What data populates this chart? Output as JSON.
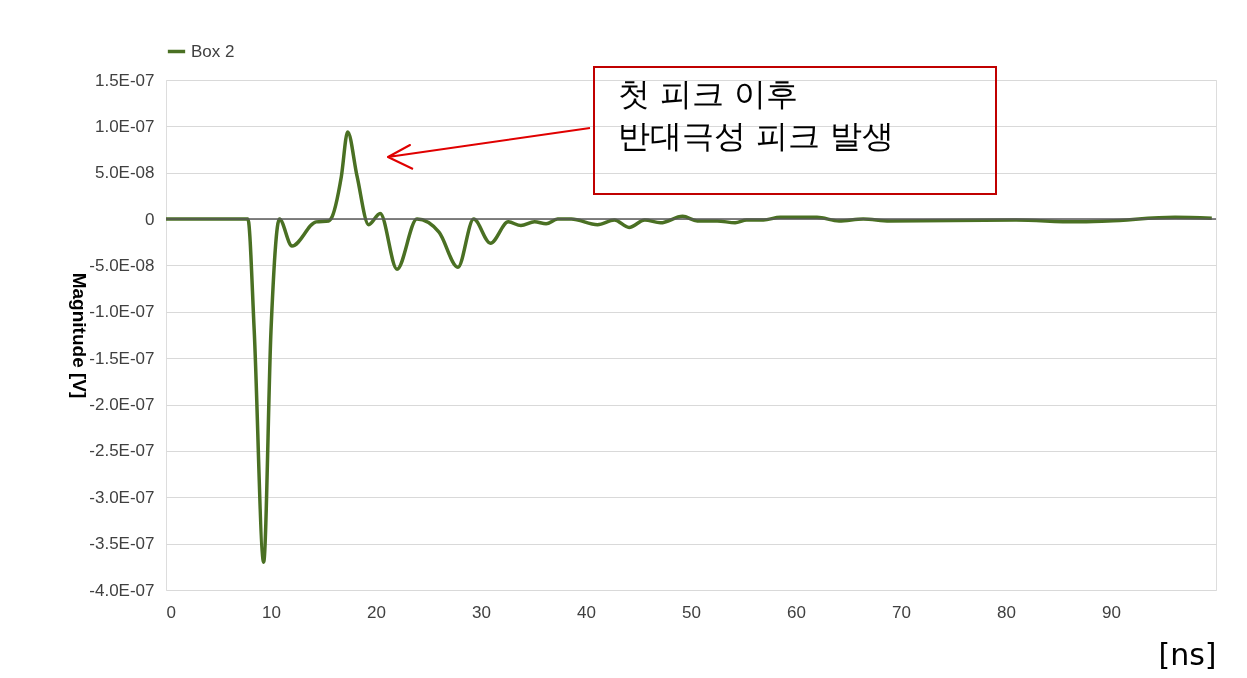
{
  "chart_data": {
    "type": "line",
    "xlabel": "[ns]",
    "ylabel": "Magnitude [V]",
    "x": [
      0,
      7.5,
      7.8,
      8.4,
      9.3,
      10.0,
      10.8,
      12.0,
      14.3,
      15.5,
      15.7,
      16.7,
      17.3,
      18.2,
      19.3,
      20.4,
      22.0,
      23.9,
      26.0,
      27.8,
      29.3,
      30.9,
      32.6,
      33.8,
      35.1,
      36.2,
      37.3,
      38.6,
      41.1,
      42.7,
      44.1,
      45.6,
      47.1,
      49.2,
      50.6,
      52.5,
      54.2,
      55.3,
      56.9,
      58.5,
      60.1,
      62.0,
      64.1,
      66.4,
      68.9,
      80.9,
      86.6,
      89.7,
      96.1,
      99.6
    ],
    "series": [
      {
        "name": "Box 2",
        "color": "#4a7023",
        "values": [
          0,
          0,
          0,
          -1.2e-07,
          -3.7e-07,
          -1.2e-07,
          0,
          -2.9e-08,
          -3e-09,
          -2e-09,
          0,
          4.6e-08,
          9.4e-08,
          4.6e-08,
          -6e-09,
          6e-09,
          -5.4e-08,
          0,
          -1.4e-08,
          -5.2e-08,
          0,
          -2.6e-08,
          -3e-09,
          -7e-09,
          -3e-09,
          -5e-09,
          0,
          0,
          -6e-09,
          -1e-09,
          -9e-09,
          -1e-09,
          -4e-09,
          3e-09,
          -2e-09,
          -2e-09,
          -4e-09,
          -1e-09,
          -1e-09,
          2e-09,
          2e-09,
          2e-09,
          -2e-09,
          0,
          -2e-09,
          -1e-09,
          -3e-09,
          -2e-09,
          2e-09,
          1e-09
        ]
      }
    ],
    "xlim": [
      0,
      100
    ],
    "xticks": [
      0,
      10,
      20,
      30,
      40,
      50,
      60,
      70,
      80,
      90
    ],
    "ylim": [
      -4e-07,
      1.5e-07
    ],
    "yticks": [
      {
        "value": 1.5e-07,
        "label": "1.5E-07"
      },
      {
        "value": 1e-07,
        "label": "1.0E-07"
      },
      {
        "value": 5e-08,
        "label": "5.0E-08"
      },
      0,
      {
        "value": -5e-08,
        "label": "-5.0E-08"
      },
      {
        "value": -1e-07,
        "label": "-1.0E-07"
      },
      {
        "value": -1.5e-07,
        "label": "-1.5E-07"
      },
      {
        "value": -2e-07,
        "label": "-2.0E-07"
      },
      {
        "value": -2.5e-07,
        "label": "-2.5E-07"
      },
      {
        "value": -3e-07,
        "label": "-3.0E-07"
      },
      {
        "value": -3.5e-07,
        "label": "-3.5E-07"
      },
      {
        "value": -4e-07,
        "label": "-4.0E-07"
      }
    ],
    "ref_lines": [
      {
        "axis": "y",
        "value": 0,
        "color": "#595959"
      }
    ],
    "annotations": [
      "첫 피크 이후\n반대극성 피크 발생"
    ],
    "grid": "y",
    "legend": "top",
    "marker": "none",
    "line_style": "solid"
  }
}
